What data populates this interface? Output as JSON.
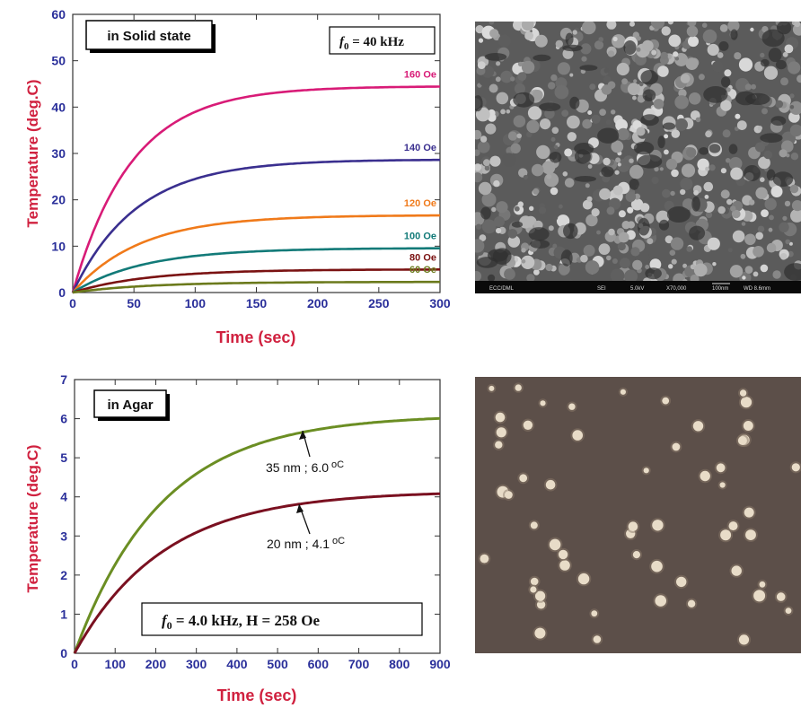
{
  "chart_data": [
    {
      "type": "line",
      "xlabel": "Time (sec)",
      "ylabel": "Temperature (deg.C)",
      "xlim": [
        0,
        300
      ],
      "ylim": [
        0,
        60
      ],
      "xticks": [
        "0",
        "50",
        "100",
        "150",
        "200",
        "250",
        "300"
      ],
      "yticks": [
        "0",
        "10",
        "20",
        "30",
        "40",
        "50",
        "60"
      ],
      "inset_label": "in Solid state",
      "freq_label": {
        "f": "f",
        "sub": "0",
        "rest": " = 40 kHz"
      },
      "series": [
        {
          "name": "160 Oe",
          "color": "#d81b77",
          "plateau": 44.5,
          "tau": 48
        },
        {
          "name": "140 Oe",
          "color": "#3a2f8f",
          "plateau": 28.7,
          "tau": 52
        },
        {
          "name": "120 Oe",
          "color": "#f07a1a",
          "plateau": 16.7,
          "tau": 55
        },
        {
          "name": "100 Oe",
          "color": "#127a78",
          "plateau": 9.6,
          "tau": 58
        },
        {
          "name": "80 Oe",
          "color": "#7a1212",
          "plateau": 5.0,
          "tau": 60
        },
        {
          "name": "60 Oe",
          "color": "#6b7a1c",
          "plateau": 2.3,
          "tau": 62
        }
      ]
    },
    {
      "type": "line",
      "xlabel": "Time (sec)",
      "ylabel": "Temperature (deg.C)",
      "xlim": [
        0,
        900
      ],
      "ylim": [
        0,
        7
      ],
      "xticks": [
        "0",
        "100",
        "200",
        "300",
        "400",
        "500",
        "600",
        "700",
        "800",
        "900"
      ],
      "yticks": [
        "0",
        "1",
        "2",
        "3",
        "4",
        "5",
        "6",
        "7"
      ],
      "inset_label": "in Agar",
      "freq_label": {
        "f": "f",
        "sub": "0",
        "rest": " = 4.0 kHz,  H = 258 Oe"
      },
      "series": [
        {
          "name": "35 nm ; 6.0",
          "unit": "oC",
          "color": "#6b8e23",
          "plateau": 6.1,
          "tau": 215
        },
        {
          "name": "20 nm ; 4.1",
          "unit": "oC",
          "color": "#7a1020",
          "plateau": 4.15,
          "tau": 220
        }
      ]
    }
  ],
  "images": {
    "sem_caption": [
      "ECC/DML",
      "SEI",
      "5.0kV",
      "X70,000",
      "100nm",
      "WD 8.6mm"
    ],
    "colors": {
      "sem_bg": "#5b5b5b",
      "sem_grain": "#bdbdbd",
      "micro_bg": "#5c4f49",
      "micro_dot": "#e8dcc8"
    }
  }
}
